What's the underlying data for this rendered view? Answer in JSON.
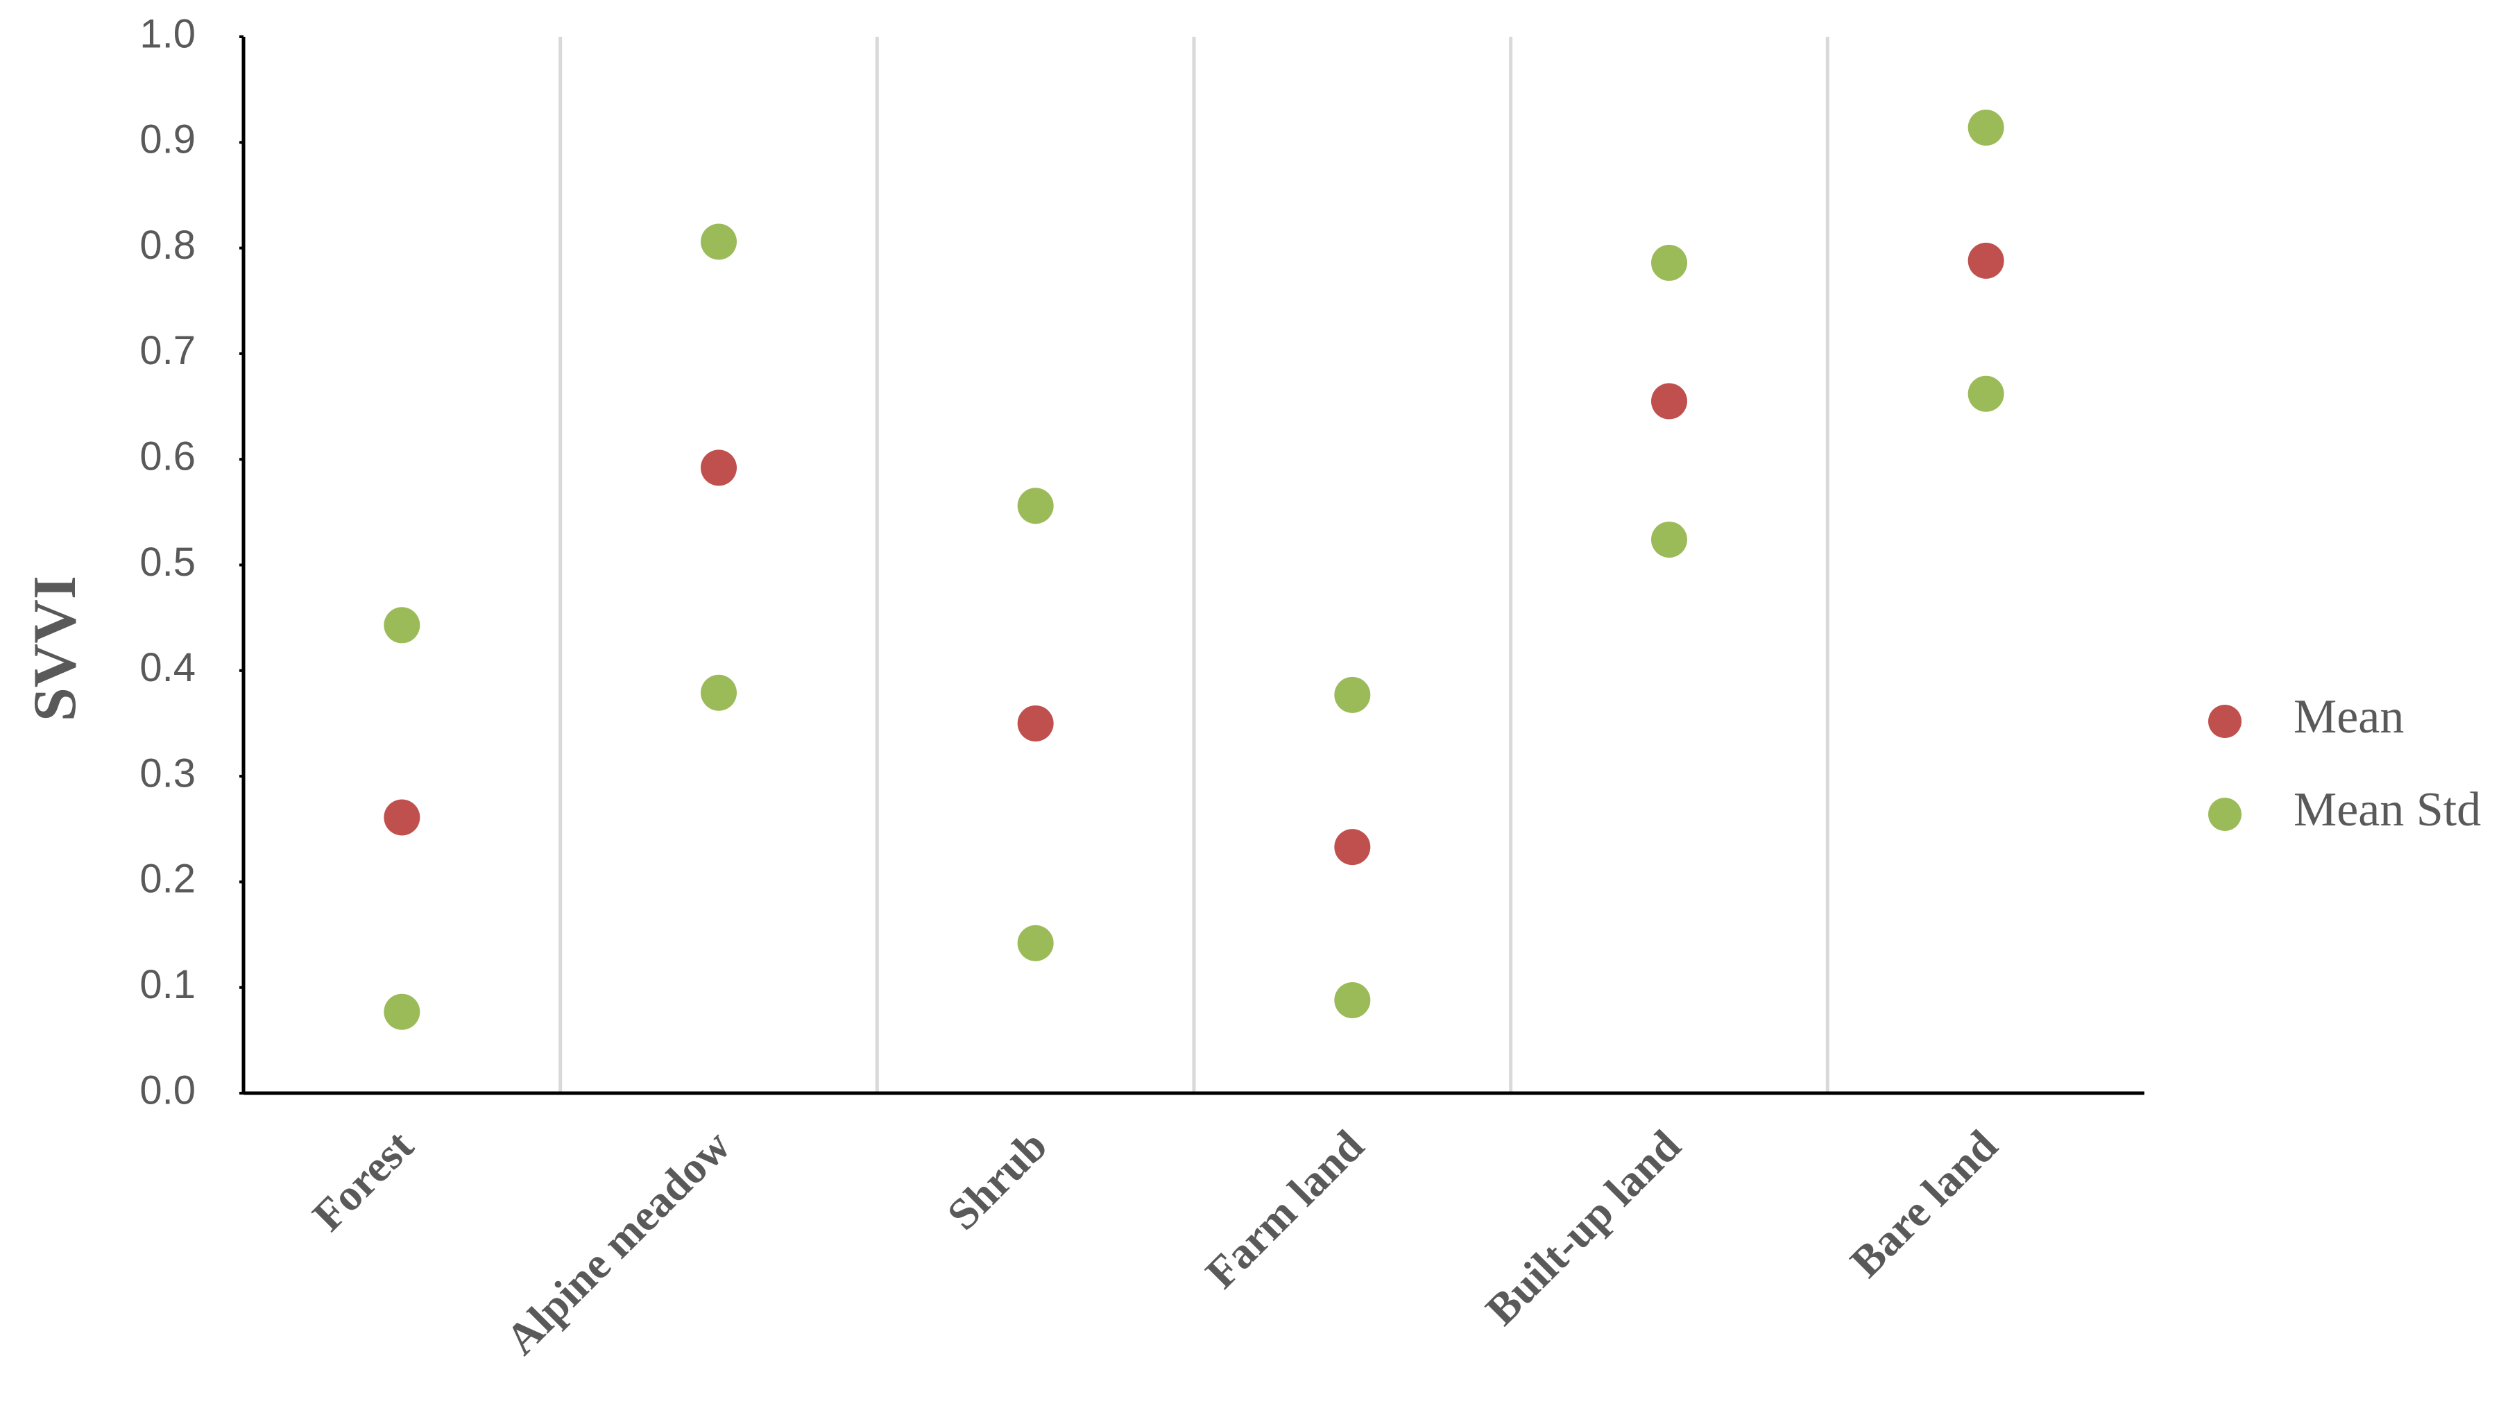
{
  "chart_data": {
    "type": "dot",
    "y_label": "SVVI",
    "categories": [
      "Forest",
      "Alpine meadow",
      "Shrub",
      "Farm land",
      "Built-up land",
      "Bare land"
    ],
    "series": [
      {
        "name": "Mean",
        "color": "#c0504d",
        "values": [
          0.261,
          0.592,
          0.35,
          0.233,
          0.655,
          0.788
        ]
      },
      {
        "name": "Mean Std",
        "color": "#9bbb59",
        "values": [
          [
            0.077,
            0.443
          ],
          [
            0.379,
            0.806
          ],
          [
            0.142,
            0.556
          ],
          [
            0.088,
            0.377
          ],
          [
            0.524,
            0.786
          ],
          [
            0.662,
            0.914
          ]
        ]
      }
    ],
    "ylim": [
      0,
      1
    ],
    "yticks": [
      {
        "value": 0,
        "label": "0.0"
      },
      0.1,
      0.2,
      0.3,
      0.4,
      0.5,
      0.6,
      0.7,
      0.8,
      0.9,
      {
        "value": 1,
        "label": "1.0"
      }
    ]
  }
}
